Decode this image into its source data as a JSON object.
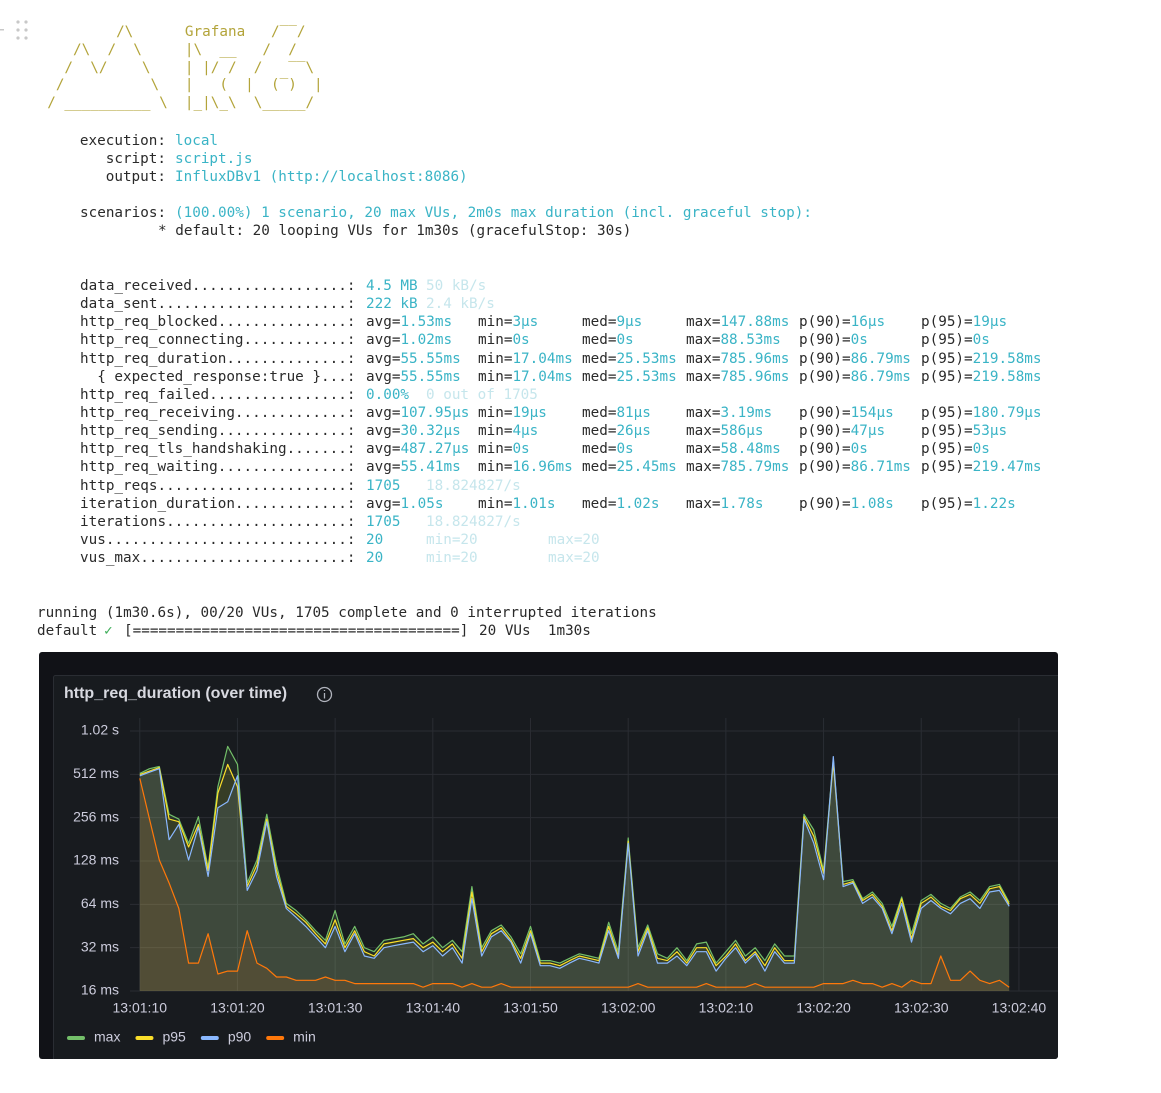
{
  "banner": {
    "logo": [
      "          /\\      Grafana   /‾‾/",
      "     /\\  /  \\     |\\  __   /  /",
      "    /  \\/    \\    | |/ /  /   ‾‾\\",
      "   /          \\   |   (  |  (‾)  |",
      "  / __________ \\  |_|\\_\\  \\_____/"
    ]
  },
  "options": [
    {
      "label": "execution:",
      "value": "local"
    },
    {
      "label": "script:",
      "value": "script.js"
    },
    {
      "label": "output:",
      "value": "InfluxDBv1 (http://localhost:8086)"
    }
  ],
  "scenarios": {
    "label": "scenarios:",
    "value": "(100.00%) 1 scenario, 20 max VUs, 2m0s max duration (incl. graceful stop):",
    "detail": "* default: 20 looping VUs for 1m30s (gracefulStop: 30s)"
  },
  "metrics": [
    {
      "name": "data_received..................:",
      "cells": [
        {
          "v": "4.5 MB"
        },
        {
          "dim": "50 kB/s"
        }
      ]
    },
    {
      "name": "data_sent......................:",
      "cells": [
        {
          "v": "222 kB"
        },
        {
          "dim": "2.4 kB/s"
        }
      ]
    },
    {
      "name": "http_req_blocked...............:",
      "cells": [
        {
          "k": "avg=",
          "v": "1.53ms"
        },
        {
          "k": "min=",
          "v": "3µs"
        },
        {
          "k": "med=",
          "v": "9µs"
        },
        {
          "k": "max=",
          "v": "147.88ms"
        },
        {
          "k": "p(90)=",
          "v": "16µs"
        },
        {
          "k": "p(95)=",
          "v": "19µs"
        }
      ]
    },
    {
      "name": "http_req_connecting............:",
      "cells": [
        {
          "k": "avg=",
          "v": "1.02ms"
        },
        {
          "k": "min=",
          "v": "0s"
        },
        {
          "k": "med=",
          "v": "0s"
        },
        {
          "k": "max=",
          "v": "88.53ms"
        },
        {
          "k": "p(90)=",
          "v": "0s"
        },
        {
          "k": "p(95)=",
          "v": "0s"
        }
      ]
    },
    {
      "name": "http_req_duration..............:",
      "cells": [
        {
          "k": "avg=",
          "v": "55.55ms"
        },
        {
          "k": "min=",
          "v": "17.04ms"
        },
        {
          "k": "med=",
          "v": "25.53ms"
        },
        {
          "k": "max=",
          "v": "785.96ms"
        },
        {
          "k": "p(90)=",
          "v": "86.79ms"
        },
        {
          "k": "p(95)=",
          "v": "219.58ms"
        }
      ]
    },
    {
      "name": "  { expected_response:true }...:",
      "cells": [
        {
          "k": "avg=",
          "v": "55.55ms"
        },
        {
          "k": "min=",
          "v": "17.04ms"
        },
        {
          "k": "med=",
          "v": "25.53ms"
        },
        {
          "k": "max=",
          "v": "785.96ms"
        },
        {
          "k": "p(90)=",
          "v": "86.79ms"
        },
        {
          "k": "p(95)=",
          "v": "219.58ms"
        }
      ]
    },
    {
      "name": "http_req_failed................:",
      "cells": [
        {
          "v": "0.00%"
        },
        {
          "dim": "0 out of 1705"
        }
      ]
    },
    {
      "name": "http_req_receiving.............:",
      "cells": [
        {
          "k": "avg=",
          "v": "107.95µs"
        },
        {
          "k": "min=",
          "v": "19µs"
        },
        {
          "k": "med=",
          "v": "81µs"
        },
        {
          "k": "max=",
          "v": "3.19ms"
        },
        {
          "k": "p(90)=",
          "v": "154µs"
        },
        {
          "k": "p(95)=",
          "v": "180.79µs"
        }
      ]
    },
    {
      "name": "http_req_sending...............:",
      "cells": [
        {
          "k": "avg=",
          "v": "30.32µs"
        },
        {
          "k": "min=",
          "v": "4µs"
        },
        {
          "k": "med=",
          "v": "26µs"
        },
        {
          "k": "max=",
          "v": "586µs"
        },
        {
          "k": "p(90)=",
          "v": "47µs"
        },
        {
          "k": "p(95)=",
          "v": "53µs"
        }
      ]
    },
    {
      "name": "http_req_tls_handshaking.......:",
      "cells": [
        {
          "k": "avg=",
          "v": "487.27µs"
        },
        {
          "k": "min=",
          "v": "0s"
        },
        {
          "k": "med=",
          "v": "0s"
        },
        {
          "k": "max=",
          "v": "58.48ms"
        },
        {
          "k": "p(90)=",
          "v": "0s"
        },
        {
          "k": "p(95)=",
          "v": "0s"
        }
      ]
    },
    {
      "name": "http_req_waiting...............:",
      "cells": [
        {
          "k": "avg=",
          "v": "55.41ms"
        },
        {
          "k": "min=",
          "v": "16.96ms"
        },
        {
          "k": "med=",
          "v": "25.45ms"
        },
        {
          "k": "max=",
          "v": "785.79ms"
        },
        {
          "k": "p(90)=",
          "v": "86.71ms"
        },
        {
          "k": "p(95)=",
          "v": "219.47ms"
        }
      ]
    },
    {
      "name": "http_reqs......................:",
      "cells": [
        {
          "v": "1705"
        },
        {
          "dim": "18.824827/s"
        }
      ]
    },
    {
      "name": "iteration_duration.............:",
      "cells": [
        {
          "k": "avg=",
          "v": "1.05s"
        },
        {
          "k": "min=",
          "v": "1.01s"
        },
        {
          "k": "med=",
          "v": "1.02s"
        },
        {
          "k": "max=",
          "v": "1.78s"
        },
        {
          "k": "p(90)=",
          "v": "1.08s"
        },
        {
          "k": "p(95)=",
          "v": "1.22s"
        }
      ]
    },
    {
      "name": "iterations.....................:",
      "cells": [
        {
          "v": "1705"
        },
        {
          "dim": "18.824827/s"
        }
      ]
    },
    {
      "name": "vus............................:",
      "cells": [
        {
          "v": "20"
        },
        {
          "dim": "min=20"
        },
        {
          "dim": "max=20"
        }
      ]
    },
    {
      "name": "vus_max........................:",
      "cells": [
        {
          "v": "20"
        },
        {
          "dim": "min=20"
        },
        {
          "dim": "max=20"
        }
      ]
    }
  ],
  "progress": {
    "status": "running (1m30.6s), 00/20 VUs, 1705 complete and 0 interrupted iterations",
    "scenario": "default",
    "check": "✓",
    "bar": "[======================================]",
    "summary": "20 VUs  1m30s"
  },
  "chart_data": {
    "type": "line",
    "title": "http_req_duration (over time)",
    "x": [
      "13:01:10",
      "13:01:11",
      "13:01:12",
      "13:01:13",
      "13:01:14",
      "13:01:15",
      "13:01:16",
      "13:01:17",
      "13:01:18",
      "13:01:19",
      "13:01:20",
      "13:01:21",
      "13:01:22",
      "13:01:23",
      "13:01:24",
      "13:01:25",
      "13:01:26",
      "13:01:27",
      "13:01:28",
      "13:01:29",
      "13:01:30",
      "13:01:31",
      "13:01:32",
      "13:01:33",
      "13:01:34",
      "13:01:35",
      "13:01:36",
      "13:01:37",
      "13:01:38",
      "13:01:39",
      "13:01:40",
      "13:01:41",
      "13:01:42",
      "13:01:43",
      "13:01:44",
      "13:01:45",
      "13:01:46",
      "13:01:47",
      "13:01:48",
      "13:01:49",
      "13:01:50",
      "13:01:51",
      "13:01:52",
      "13:01:53",
      "13:01:54",
      "13:01:55",
      "13:01:56",
      "13:01:57",
      "13:01:58",
      "13:01:59",
      "13:02:00",
      "13:02:01",
      "13:02:02",
      "13:02:03",
      "13:02:04",
      "13:02:05",
      "13:02:06",
      "13:02:07",
      "13:02:08",
      "13:02:09",
      "13:02:10",
      "13:02:11",
      "13:02:12",
      "13:02:13",
      "13:02:14",
      "13:02:15",
      "13:02:16",
      "13:02:17",
      "13:02:18",
      "13:02:19",
      "13:02:20",
      "13:02:21",
      "13:02:22",
      "13:02:23",
      "13:02:24",
      "13:02:25",
      "13:02:26",
      "13:02:27",
      "13:02:28",
      "13:02:29",
      "13:02:30",
      "13:02:31",
      "13:02:32",
      "13:02:33",
      "13:02:34",
      "13:02:35",
      "13:02:36",
      "13:02:37",
      "13:02:38",
      "13:02:39"
    ],
    "series": [
      {
        "name": "max",
        "color": "#73bf69",
        "values": [
          520,
          560,
          580,
          270,
          250,
          170,
          260,
          115,
          420,
          800,
          600,
          90,
          130,
          270,
          120,
          65,
          58,
          50,
          42,
          36,
          58,
          34,
          45,
          32,
          30,
          36,
          37,
          38,
          40,
          34,
          38,
          32,
          36,
          30,
          85,
          32,
          42,
          46,
          38,
          29,
          45,
          26,
          26,
          25,
          27,
          29,
          28,
          27,
          48,
          30,
          185,
          32,
          46,
          29,
          27,
          32,
          26,
          34,
          35,
          25,
          30,
          36,
          28,
          32,
          26,
          34,
          28,
          28,
          270,
          210,
          110,
          650,
          92,
          95,
          70,
          78,
          65,
          45,
          72,
          40,
          68,
          75,
          65,
          60,
          72,
          78,
          68,
          85,
          88,
          66
        ]
      },
      {
        "name": "p95",
        "color": "#fade2a",
        "values": [
          510,
          540,
          570,
          250,
          240,
          160,
          230,
          110,
          380,
          600,
          420,
          85,
          120,
          250,
          110,
          62,
          55,
          48,
          40,
          34,
          50,
          32,
          42,
          30,
          28,
          34,
          35,
          36,
          37,
          32,
          35,
          30,
          34,
          27,
          78,
          30,
          40,
          44,
          36,
          27,
          42,
          25,
          25,
          24,
          26,
          28,
          27,
          26,
          45,
          28,
          175,
          30,
          44,
          27,
          26,
          30,
          25,
          32,
          32,
          24,
          28,
          34,
          26,
          30,
          24,
          32,
          26,
          26,
          260,
          190,
          105,
          620,
          88,
          92,
          68,
          75,
          62,
          42,
          70,
          37,
          65,
          72,
          62,
          58,
          70,
          75,
          65,
          82,
          85,
          64
        ]
      },
      {
        "name": "p90",
        "color": "#8ab8ff",
        "values": [
          500,
          530,
          560,
          180,
          230,
          130,
          220,
          100,
          300,
          330,
          500,
          80,
          110,
          240,
          100,
          60,
          52,
          45,
          38,
          32,
          45,
          30,
          40,
          28,
          27,
          32,
          33,
          34,
          35,
          30,
          33,
          28,
          32,
          25,
          70,
          28,
          38,
          42,
          35,
          25,
          40,
          24,
          24,
          23,
          25,
          27,
          26,
          25,
          42,
          27,
          170,
          28,
          42,
          25,
          25,
          28,
          24,
          30,
          30,
          22,
          27,
          32,
          25,
          29,
          22,
          30,
          25,
          25,
          250,
          170,
          95,
          680,
          85,
          90,
          65,
          72,
          60,
          40,
          65,
          35,
          60,
          68,
          60,
          55,
          65,
          70,
          60,
          78,
          80,
          62
        ]
      },
      {
        "name": "min",
        "color": "#ff780a",
        "values": [
          480,
          250,
          130,
          90,
          60,
          25,
          25,
          40,
          21,
          22,
          22,
          42,
          25,
          23,
          20,
          20,
          19,
          19,
          19,
          20,
          19,
          19,
          18,
          18,
          18,
          18,
          18,
          18,
          18,
          17,
          18,
          18,
          18,
          17,
          18,
          17,
          17,
          18,
          17,
          17,
          17,
          17,
          17,
          17,
          17,
          17,
          17,
          17,
          17,
          17,
          17,
          18,
          17,
          17,
          17,
          17,
          17,
          17,
          18,
          17,
          17,
          17,
          17,
          18,
          17,
          17,
          17,
          17,
          17,
          17,
          18,
          18,
          18,
          19,
          18,
          18,
          17,
          18,
          17,
          19,
          18,
          18,
          28,
          19,
          19,
          22,
          19,
          18,
          19,
          17
        ]
      }
    ],
    "xlim": [
      "13:01:09",
      "13:02:44"
    ],
    "xticks": [
      "13:01:10",
      "13:01:20",
      "13:01:30",
      "13:01:40",
      "13:01:50",
      "13:02:00",
      "13:02:10",
      "13:02:20",
      "13:02:30",
      "13:02:40"
    ],
    "ylim": [
      16,
      1024
    ],
    "yticks": [
      {
        "value": 16,
        "label": "16 ms"
      },
      {
        "value": 32,
        "label": "32 ms"
      },
      {
        "value": 64,
        "label": "64 ms"
      },
      {
        "value": 128,
        "label": "128 ms"
      },
      {
        "value": 256,
        "label": "256 ms"
      },
      {
        "value": 512,
        "label": "512 ms"
      },
      {
        "value": 1024,
        "label": "1.02 s"
      }
    ],
    "yscale": "log",
    "grid": true,
    "legend": "bottom-left"
  }
}
